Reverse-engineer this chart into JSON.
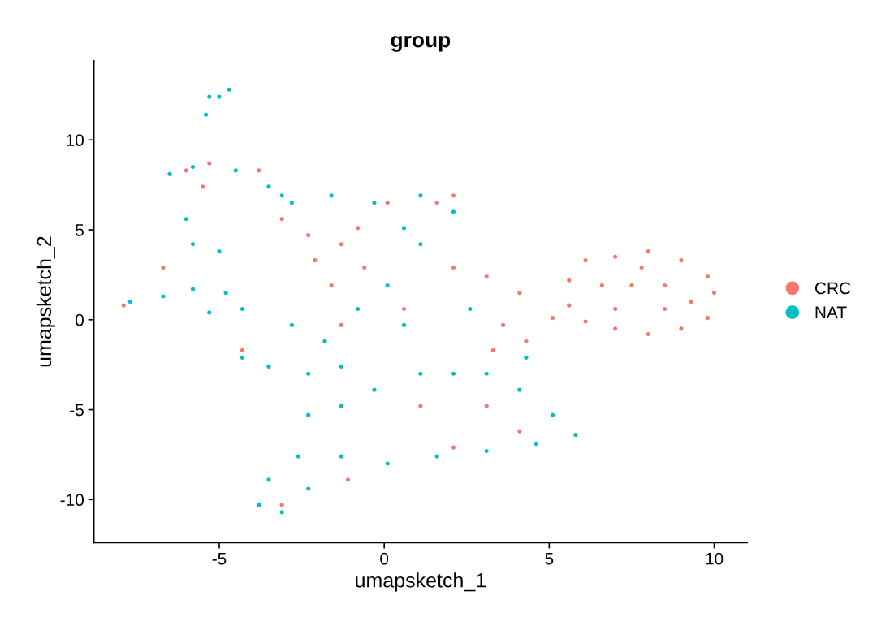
{
  "chart_data": {
    "type": "scatter",
    "title": "group",
    "xlabel": "umapsketch_1",
    "ylabel": "umapsketch_2",
    "xlim": [
      -8.8,
      11.0
    ],
    "ylim": [
      -12.4,
      14.4
    ],
    "xticks": [
      {
        "value": -5,
        "label": "-5"
      },
      0,
      5,
      10
    ],
    "yticks": [
      {
        "value": -10,
        "label": "-10"
      },
      {
        "value": -5,
        "label": "-5"
      },
      0,
      5,
      10
    ],
    "grid": false,
    "legend": "right",
    "marker": "circle",
    "series": [
      {
        "name": "CRC",
        "color": "#f8766d",
        "x": [
          5.6,
          6.1,
          7.0,
          8.0,
          9.0,
          9.8,
          10.0,
          9.8,
          9.0,
          8.0,
          7.0,
          6.1,
          5.6,
          6.6,
          7.5,
          8.5,
          7.0,
          8.5,
          9.3,
          7.8,
          2.1,
          3.1,
          4.1,
          3.6,
          4.3,
          3.3,
          5.1,
          -2.1,
          -1.3,
          -0.6,
          -0.8,
          -1.6,
          -2.3,
          -6.0,
          -5.3,
          -5.5,
          1.6,
          2.1,
          -4.3,
          0.1,
          -3.1,
          3.1,
          4.1,
          1.1,
          -1.3,
          -3.1,
          -1.1,
          -6.7,
          -3.8,
          0.6,
          2.1,
          -7.9
        ],
        "values": [
          2.2,
          3.3,
          3.5,
          3.8,
          3.3,
          2.4,
          1.5,
          0.1,
          -0.5,
          -0.8,
          -0.5,
          -0.1,
          0.8,
          1.9,
          1.9,
          1.9,
          0.6,
          0.6,
          1.0,
          2.9,
          2.9,
          2.4,
          1.5,
          -0.3,
          -1.2,
          -1.7,
          0.1,
          3.3,
          4.2,
          2.9,
          5.1,
          1.9,
          4.7,
          8.3,
          8.7,
          7.4,
          6.5,
          6.9,
          -1.7,
          6.5,
          5.6,
          -4.8,
          -6.2,
          -4.8,
          -0.3,
          -10.3,
          -8.9,
          2.9,
          8.3,
          0.6,
          -7.1,
          0.8
        ]
      },
      {
        "name": "NAT",
        "color": "#00bfc4",
        "x": [
          -5.3,
          -5.0,
          -4.7,
          -5.4,
          -6.5,
          -5.8,
          -4.5,
          -3.5,
          -3.1,
          -6.0,
          -5.8,
          -5.0,
          -7.7,
          -6.7,
          -5.8,
          -4.8,
          -4.3,
          -5.3,
          -2.8,
          -1.8,
          -0.8,
          0.1,
          0.6,
          -3.5,
          -4.3,
          -2.3,
          -1.3,
          -2.8,
          -1.6,
          -0.3,
          1.1,
          2.1,
          0.6,
          1.1,
          -2.3,
          -1.3,
          -0.3,
          1.1,
          2.1,
          3.1,
          4.1,
          5.1,
          5.8,
          4.6,
          3.1,
          1.6,
          0.1,
          -1.3,
          -2.6,
          -3.5,
          -3.8,
          -3.1,
          -2.3,
          2.6,
          4.3
        ],
        "values": [
          12.4,
          12.4,
          12.8,
          11.4,
          8.1,
          8.5,
          8.3,
          7.4,
          6.9,
          5.6,
          4.2,
          3.8,
          1.0,
          1.3,
          1.7,
          1.5,
          0.6,
          0.4,
          -0.3,
          -1.2,
          0.6,
          1.9,
          -0.3,
          -2.6,
          -2.1,
          -3.0,
          -2.6,
          6.5,
          6.9,
          6.5,
          6.9,
          6.0,
          5.1,
          4.2,
          -5.3,
          -4.8,
          -3.9,
          -3.0,
          -3.0,
          -3.0,
          -3.9,
          -5.3,
          -6.4,
          -6.9,
          -7.3,
          -7.6,
          -8.0,
          -7.6,
          -7.6,
          -8.9,
          -10.3,
          -10.7,
          -9.4,
          0.6,
          -2.1
        ]
      }
    ]
  }
}
